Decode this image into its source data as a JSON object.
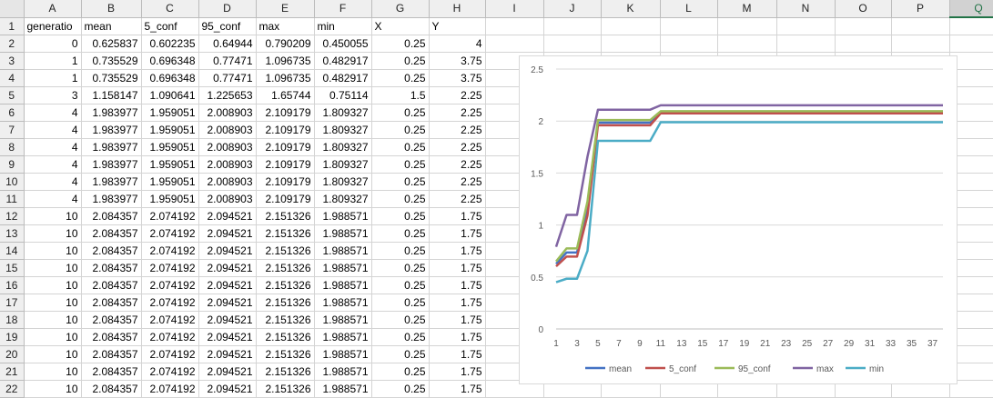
{
  "spreadsheet": {
    "columns": [
      "A",
      "B",
      "C",
      "D",
      "E",
      "F",
      "G",
      "H",
      "I",
      "J",
      "K",
      "L",
      "M",
      "N",
      "O",
      "P",
      "Q"
    ],
    "selected_column": "Q",
    "row_numbers": [
      1,
      2,
      3,
      4,
      5,
      6,
      7,
      8,
      9,
      10,
      11,
      12,
      13,
      14,
      15,
      16,
      17,
      18,
      19,
      20,
      21,
      22
    ],
    "headers": [
      "generatio",
      "mean",
      "5_conf",
      "95_conf",
      "max",
      "min",
      "X",
      "Y"
    ],
    "rows": [
      [
        "0",
        "0.625837",
        "0.602235",
        "0.64944",
        "0.790209",
        "0.450055",
        "0.25",
        "4"
      ],
      [
        "1",
        "0.735529",
        "0.696348",
        "0.77471",
        "1.096735",
        "0.482917",
        "0.25",
        "3.75"
      ],
      [
        "1",
        "0.735529",
        "0.696348",
        "0.77471",
        "1.096735",
        "0.482917",
        "0.25",
        "3.75"
      ],
      [
        "3",
        "1.158147",
        "1.090641",
        "1.225653",
        "1.65744",
        "0.75114",
        "1.5",
        "2.25"
      ],
      [
        "4",
        "1.983977",
        "1.959051",
        "2.008903",
        "2.109179",
        "1.809327",
        "0.25",
        "2.25"
      ],
      [
        "4",
        "1.983977",
        "1.959051",
        "2.008903",
        "2.109179",
        "1.809327",
        "0.25",
        "2.25"
      ],
      [
        "4",
        "1.983977",
        "1.959051",
        "2.008903",
        "2.109179",
        "1.809327",
        "0.25",
        "2.25"
      ],
      [
        "4",
        "1.983977",
        "1.959051",
        "2.008903",
        "2.109179",
        "1.809327",
        "0.25",
        "2.25"
      ],
      [
        "4",
        "1.983977",
        "1.959051",
        "2.008903",
        "2.109179",
        "1.809327",
        "0.25",
        "2.25"
      ],
      [
        "4",
        "1.983977",
        "1.959051",
        "2.008903",
        "2.109179",
        "1.809327",
        "0.25",
        "2.25"
      ],
      [
        "10",
        "2.084357",
        "2.074192",
        "2.094521",
        "2.151326",
        "1.988571",
        "0.25",
        "1.75"
      ],
      [
        "10",
        "2.084357",
        "2.074192",
        "2.094521",
        "2.151326",
        "1.988571",
        "0.25",
        "1.75"
      ],
      [
        "10",
        "2.084357",
        "2.074192",
        "2.094521",
        "2.151326",
        "1.988571",
        "0.25",
        "1.75"
      ],
      [
        "10",
        "2.084357",
        "2.074192",
        "2.094521",
        "2.151326",
        "1.988571",
        "0.25",
        "1.75"
      ],
      [
        "10",
        "2.084357",
        "2.074192",
        "2.094521",
        "2.151326",
        "1.988571",
        "0.25",
        "1.75"
      ],
      [
        "10",
        "2.084357",
        "2.074192",
        "2.094521",
        "2.151326",
        "1.988571",
        "0.25",
        "1.75"
      ],
      [
        "10",
        "2.084357",
        "2.074192",
        "2.094521",
        "2.151326",
        "1.988571",
        "0.25",
        "1.75"
      ],
      [
        "10",
        "2.084357",
        "2.074192",
        "2.094521",
        "2.151326",
        "1.988571",
        "0.25",
        "1.75"
      ],
      [
        "10",
        "2.084357",
        "2.074192",
        "2.094521",
        "2.151326",
        "1.988571",
        "0.25",
        "1.75"
      ],
      [
        "10",
        "2.084357",
        "2.074192",
        "2.094521",
        "2.151326",
        "1.988571",
        "0.25",
        "1.75"
      ],
      [
        "10",
        "2.084357",
        "2.074192",
        "2.094521",
        "2.151326",
        "1.988571",
        "0.25",
        "1.75"
      ]
    ]
  },
  "chart_data": {
    "type": "line",
    "title": "",
    "xlabel": "",
    "ylabel": "",
    "x_tick_labels": [
      "1",
      "3",
      "5",
      "7",
      "9",
      "11",
      "13",
      "15",
      "17",
      "19",
      "21",
      "23",
      "25",
      "27",
      "29",
      "31",
      "33",
      "35",
      "37"
    ],
    "ylim": [
      0,
      2.5
    ],
    "y_ticks": [
      "0",
      "0.5",
      "1",
      "1.5",
      "2",
      "2.5"
    ],
    "grid": true,
    "legend_position": "bottom",
    "x": [
      1,
      2,
      3,
      4,
      5,
      6,
      7,
      8,
      9,
      10,
      11,
      12,
      13,
      14,
      15,
      16,
      17,
      18,
      19,
      20,
      21,
      22,
      23,
      24,
      25,
      26,
      27,
      28,
      29,
      30,
      31,
      32,
      33,
      34,
      35,
      36,
      37,
      38
    ],
    "series": [
      {
        "name": "mean",
        "color": "#4472C4",
        "values": [
          0.625837,
          0.735529,
          0.735529,
          1.158147,
          1.983977,
          1.983977,
          1.983977,
          1.983977,
          1.983977,
          1.983977,
          2.084357,
          2.084357,
          2.084357,
          2.084357,
          2.084357,
          2.084357,
          2.084357,
          2.084357,
          2.084357,
          2.084357,
          2.084357,
          2.084357,
          2.084357,
          2.084357,
          2.084357,
          2.084357,
          2.084357,
          2.084357,
          2.084357,
          2.084357,
          2.084357,
          2.084357,
          2.084357,
          2.084357,
          2.084357,
          2.084357,
          2.084357,
          2.084357
        ]
      },
      {
        "name": "5_conf",
        "color": "#C0504D",
        "values": [
          0.602235,
          0.696348,
          0.696348,
          1.090641,
          1.959051,
          1.959051,
          1.959051,
          1.959051,
          1.959051,
          1.959051,
          2.074192,
          2.074192,
          2.074192,
          2.074192,
          2.074192,
          2.074192,
          2.074192,
          2.074192,
          2.074192,
          2.074192,
          2.074192,
          2.074192,
          2.074192,
          2.074192,
          2.074192,
          2.074192,
          2.074192,
          2.074192,
          2.074192,
          2.074192,
          2.074192,
          2.074192,
          2.074192,
          2.074192,
          2.074192,
          2.074192,
          2.074192,
          2.074192
        ]
      },
      {
        "name": "95_conf",
        "color": "#9BBB59",
        "values": [
          0.64944,
          0.77471,
          0.77471,
          1.225653,
          2.008903,
          2.008903,
          2.008903,
          2.008903,
          2.008903,
          2.008903,
          2.094521,
          2.094521,
          2.094521,
          2.094521,
          2.094521,
          2.094521,
          2.094521,
          2.094521,
          2.094521,
          2.094521,
          2.094521,
          2.094521,
          2.094521,
          2.094521,
          2.094521,
          2.094521,
          2.094521,
          2.094521,
          2.094521,
          2.094521,
          2.094521,
          2.094521,
          2.094521,
          2.094521,
          2.094521,
          2.094521,
          2.094521,
          2.094521
        ]
      },
      {
        "name": "max",
        "color": "#8064A2",
        "values": [
          0.790209,
          1.096735,
          1.096735,
          1.65744,
          2.109179,
          2.109179,
          2.109179,
          2.109179,
          2.109179,
          2.109179,
          2.151326,
          2.151326,
          2.151326,
          2.151326,
          2.151326,
          2.151326,
          2.151326,
          2.151326,
          2.151326,
          2.151326,
          2.151326,
          2.151326,
          2.151326,
          2.151326,
          2.151326,
          2.151326,
          2.151326,
          2.151326,
          2.151326,
          2.151326,
          2.151326,
          2.151326,
          2.151326,
          2.151326,
          2.151326,
          2.151326,
          2.151326,
          2.151326
        ]
      },
      {
        "name": "min",
        "color": "#4BACC6",
        "values": [
          0.450055,
          0.482917,
          0.482917,
          0.75114,
          1.809327,
          1.809327,
          1.809327,
          1.809327,
          1.809327,
          1.809327,
          1.988571,
          1.988571,
          1.988571,
          1.988571,
          1.988571,
          1.988571,
          1.988571,
          1.988571,
          1.988571,
          1.988571,
          1.988571,
          1.988571,
          1.988571,
          1.988571,
          1.988571,
          1.988571,
          1.988571,
          1.988571,
          1.988571,
          1.988571,
          1.988571,
          1.988571,
          1.988571,
          1.988571,
          1.988571,
          1.988571,
          1.988571,
          1.988571
        ]
      }
    ]
  }
}
